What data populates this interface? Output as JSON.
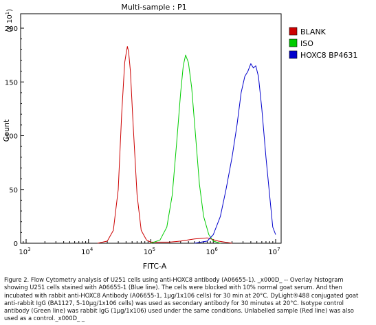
{
  "chart_data": {
    "type": "line",
    "title": "Multi-sample : P1",
    "xlabel": "FITC-A",
    "ylabel": "Count",
    "y_multiplier": "(x 10^1)",
    "x_scale": "log",
    "xlim": [
      1000,
      10000000
    ],
    "ylim": [
      0,
      200
    ],
    "x_ticks": [
      {
        "value": 1000,
        "label": "10^3"
      },
      {
        "value": 10000,
        "label": "10^4"
      },
      {
        "value": 100000,
        "label": "10^5"
      },
      {
        "value": 1000000,
        "label": "10^6"
      },
      {
        "value": 10000000,
        "label": "10^7"
      }
    ],
    "y_ticks": [
      0,
      50,
      100,
      150,
      200
    ],
    "legend_position": "top-right",
    "series": [
      {
        "name": "BLANK",
        "color": "#cc0000",
        "x": [
          14000,
          20000,
          25000,
          30000,
          34000,
          38000,
          40000,
          42000,
          44000,
          47000,
          52000,
          60000,
          70000,
          85000,
          100000,
          120000,
          150000,
          200000,
          300000,
          500000,
          800000,
          1200000,
          2000000
        ],
        "y": [
          0,
          2,
          12,
          50,
          120,
          168,
          176,
          183,
          178,
          160,
          110,
          45,
          12,
          3,
          1,
          1,
          1,
          1,
          2,
          4,
          5,
          2,
          0
        ]
      },
      {
        "name": "ISO",
        "color": "#00cc00",
        "x": [
          100000,
          140000,
          180000,
          220000,
          260000,
          300000,
          330000,
          360000,
          400000,
          450000,
          520000,
          600000,
          700000,
          850000,
          1000000,
          1300000
        ],
        "y": [
          0,
          3,
          15,
          45,
          95,
          140,
          165,
          175,
          168,
          145,
          100,
          55,
          25,
          8,
          2,
          0
        ]
      },
      {
        "name": "HOXC8 BP4631",
        "color": "#0000cc",
        "x": [
          500000,
          800000,
          1000000,
          1300000,
          1600000,
          2000000,
          2400000,
          2800000,
          3200000,
          3600000,
          4000000,
          4400000,
          4800000,
          5300000,
          6000000,
          7000000,
          8000000,
          9000000,
          10000000
        ],
        "y": [
          0,
          2,
          8,
          25,
          50,
          80,
          110,
          140,
          155,
          160,
          167,
          163,
          165,
          155,
          125,
          80,
          45,
          15,
          8
        ]
      }
    ]
  },
  "caption": {
    "text": "Figure 2. Flow Cytometry analysis of U251 cells using anti-HOXC8 antibody (A06655-1). _x000D_ -- Overlay histogram showing U251 cells stained with A06655-1 (Blue line). The cells were blocked with 10% normal goat serum. And then incubated with rabbit anti-HOXC8 Antibody (A06655-1, 1μg/1x106 cells) for 30 min at 20°C. DyLight®488 conjugated goat anti-rabbit IgG (BA1127, 5-10μg/1x106 cells) was used as secondary antibody for 30 minutes at 20°C. Isotype control antibody (Green line) was rabbit IgG (1μg/1x106) used under the same conditions. Unlabelled sample (Red line) was also used as a control._x000D_ _"
  }
}
